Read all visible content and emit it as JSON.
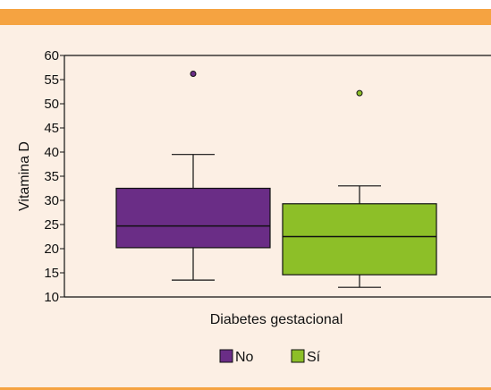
{
  "chart_data": {
    "type": "box",
    "xlabel": "Diabetes gestacional",
    "ylabel": "Vitamina D",
    "ylim": [
      10,
      60
    ],
    "yticks": [
      10,
      15,
      20,
      25,
      30,
      35,
      40,
      45,
      50,
      55,
      60
    ],
    "series": [
      {
        "name": "No",
        "color": "#6a2d86",
        "min": 13.5,
        "q1": 20.2,
        "median": 24.7,
        "q3": 32.5,
        "max": 39.5,
        "outliers": [
          56.2
        ]
      },
      {
        "name": "Sí",
        "color": "#8dbf28",
        "min": 12.0,
        "q1": 14.6,
        "median": 22.5,
        "q3": 29.3,
        "max": 33.0,
        "outliers": [
          52.2
        ]
      }
    ],
    "legend": "bottom",
    "grid": false
  },
  "colors": {
    "band": "#f5a341",
    "background": "#fcefe4"
  }
}
